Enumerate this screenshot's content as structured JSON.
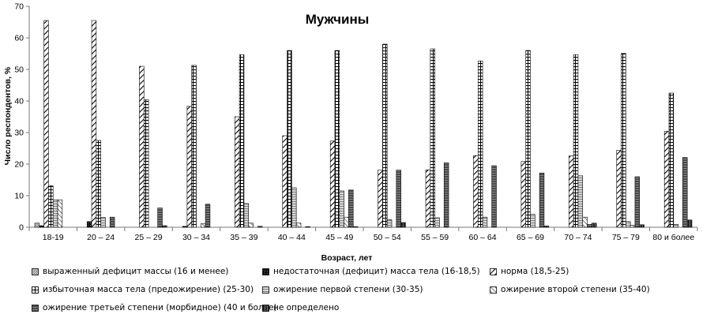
{
  "chart_data": {
    "type": "bar",
    "title": "Мужчины",
    "xlabel": "Возраст, лет",
    "ylabel": "Число респондентов, %",
    "ylim": [
      0,
      70
    ],
    "yticks": [
      0,
      10,
      20,
      30,
      40,
      50,
      60,
      70
    ],
    "grid": false,
    "legend_position": "bottom",
    "categories": [
      "18-19",
      "20 – 24",
      "25 – 29",
      "30 – 34",
      "35 – 39",
      "40 – 44",
      "45 – 49",
      "50 – 54",
      "55 – 59",
      "60 – 64",
      "65 – 69",
      "70 – 74",
      "75 – 79",
      "80 и более"
    ],
    "series": [
      {
        "name": "выраженный дефицит массы (16 и менее)",
        "values": [
          1.3,
          0,
          0,
          0,
          0,
          0,
          0,
          0,
          0,
          0,
          0,
          0,
          0,
          0
        ]
      },
      {
        "name": "недостаточная (дефицит) масса тела (16-18,5)",
        "values": [
          0.5,
          1.8,
          0,
          0.3,
          0,
          0,
          0,
          0,
          0,
          0,
          0,
          0,
          0,
          0
        ]
      },
      {
        "name": "норма (18,5-25)",
        "values": [
          65.5,
          65.5,
          51,
          38.3,
          35,
          29,
          27.3,
          18.2,
          18.2,
          22.7,
          20.8,
          22.6,
          24.4,
          30.4
        ]
      },
      {
        "name": "избыточная масса тела (предожирение) (25-30)",
        "values": [
          13.2,
          27.5,
          40.4,
          51.3,
          54.7,
          56,
          56,
          58,
          56.5,
          52.7,
          56,
          54.7,
          55.1,
          42.5
        ]
      },
      {
        "name": "ожирение первой степени (30-35)",
        "values": [
          8.7,
          3.1,
          0,
          0,
          7.5,
          12.5,
          11.5,
          2.4,
          3,
          3.2,
          4.1,
          16.3,
          1.8,
          0.9
        ]
      },
      {
        "name": "ожирение второй степени (35-40)",
        "values": [
          8.7,
          0,
          0,
          1.1,
          1.3,
          1.3,
          3.2,
          0,
          0,
          0,
          0,
          3.2,
          0.6,
          0
        ]
      },
      {
        "name": "ожирение третьей степени (морбидное) (40 и более)",
        "values": [
          0,
          3.2,
          6.1,
          7.3,
          0,
          0,
          11.8,
          18.1,
          20.4,
          19.5,
          17.2,
          0.9,
          16,
          22.1
        ]
      },
      {
        "name": "не определено",
        "values": [
          0,
          0,
          0.5,
          0,
          0.3,
          0.2,
          0.2,
          1.5,
          0,
          0,
          0.4,
          1.3,
          0.8,
          2.3
        ]
      }
    ],
    "series_colors": [
      "#9a9a9a",
      "#1a1a1a",
      "#ffffff",
      "#ffffff",
      "#b3b3b3",
      "#e6e6e6",
      "#6e6e6e",
      "#3a3a3a"
    ]
  }
}
